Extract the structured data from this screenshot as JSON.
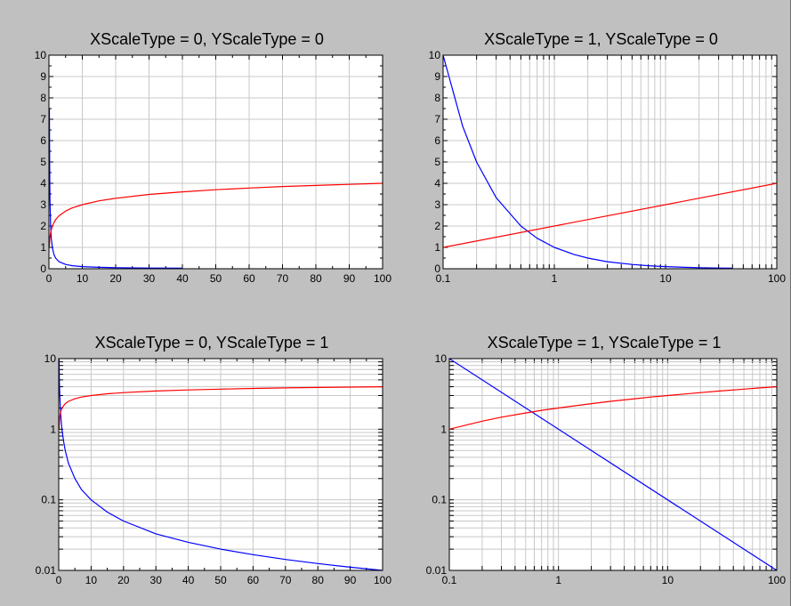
{
  "chart_data": [
    {
      "type": "line",
      "title": "XScaleType = 0, YScaleType = 0",
      "xscale": "linear",
      "yscale": "linear",
      "xlim": [
        0,
        100
      ],
      "ylim": [
        0,
        10
      ],
      "xticks": [
        0,
        10,
        20,
        30,
        40,
        50,
        60,
        70,
        80,
        90,
        100
      ],
      "xticklabels": [
        "0",
        "10",
        "20",
        "30",
        "40",
        "50",
        "60",
        "70",
        "80",
        "90",
        "100"
      ],
      "yticks": [
        0,
        1,
        2,
        3,
        4,
        5,
        6,
        7,
        8,
        9,
        10
      ],
      "yticklabels": [
        "0",
        "1",
        "2",
        "3",
        "4",
        "5",
        "6",
        "7",
        "8",
        "9",
        "10"
      ],
      "grid": true,
      "series": [
        {
          "color": "#0000ff",
          "x": [
            0.13,
            0.15,
            0.2,
            0.3,
            0.5,
            0.7,
            1,
            1.5,
            2,
            3,
            5,
            7,
            10,
            15,
            20,
            30,
            40
          ],
          "y": [
            7.5,
            6.7,
            5,
            3.33,
            2,
            1.43,
            1,
            0.67,
            0.5,
            0.33,
            0.2,
            0.14,
            0.1,
            0.067,
            0.05,
            0.033,
            0.025
          ]
        },
        {
          "color": "#ff0000",
          "x": [
            0.1,
            0.3,
            0.5,
            1,
            2,
            3,
            5,
            7,
            10,
            15,
            20,
            30,
            40,
            50,
            60,
            70,
            80,
            90,
            100
          ],
          "y": [
            1,
            1.48,
            1.7,
            2,
            2.3,
            2.48,
            2.7,
            2.85,
            3,
            3.18,
            3.3,
            3.48,
            3.6,
            3.7,
            3.78,
            3.85,
            3.9,
            3.95,
            4
          ]
        }
      ]
    },
    {
      "type": "line",
      "title": "XScaleType = 1, YScaleType = 0",
      "xscale": "log",
      "yscale": "linear",
      "xlim": [
        0.1,
        100
      ],
      "ylim": [
        0,
        10
      ],
      "xticks": [
        0.1,
        1,
        10,
        100
      ],
      "xticklabels": [
        "0.1",
        "1",
        "10",
        "100"
      ],
      "yticks": [
        0,
        1,
        2,
        3,
        4,
        5,
        6,
        7,
        8,
        9,
        10
      ],
      "yticklabels": [
        "0",
        "1",
        "2",
        "3",
        "4",
        "5",
        "6",
        "7",
        "8",
        "9",
        "10"
      ],
      "grid": true,
      "series": [
        {
          "color": "#0000ff",
          "x": [
            0.1,
            0.15,
            0.2,
            0.3,
            0.5,
            0.7,
            1,
            1.5,
            2,
            3,
            5,
            7,
            10,
            15,
            20,
            30,
            40
          ],
          "y": [
            10,
            6.67,
            5,
            3.33,
            2,
            1.43,
            1,
            0.67,
            0.5,
            0.33,
            0.2,
            0.14,
            0.1,
            0.067,
            0.05,
            0.033,
            0.025
          ]
        },
        {
          "color": "#ff0000",
          "x": [
            0.1,
            100
          ],
          "y": [
            1,
            4
          ]
        }
      ]
    },
    {
      "type": "line",
      "title": "XScaleType = 0, YScaleType = 1",
      "xscale": "linear",
      "yscale": "log",
      "xlim": [
        0,
        100
      ],
      "ylim": [
        0.01,
        10
      ],
      "xticks": [
        0,
        10,
        20,
        30,
        40,
        50,
        60,
        70,
        80,
        90,
        100
      ],
      "xticklabels": [
        "0",
        "10",
        "20",
        "30",
        "40",
        "50",
        "60",
        "70",
        "80",
        "90",
        "100"
      ],
      "yticks": [
        0.01,
        0.1,
        1,
        10
      ],
      "yticklabels": [
        "0.01",
        "0.1",
        "1",
        "10"
      ],
      "grid": true,
      "series": [
        {
          "color": "#0000ff",
          "x": [
            0.1,
            0.2,
            0.3,
            0.5,
            0.7,
            1,
            1.5,
            2,
            3,
            5,
            7,
            10,
            15,
            20,
            30,
            40,
            50,
            60,
            70,
            80,
            90,
            100
          ],
          "y": [
            10,
            5,
            3.33,
            2,
            1.43,
            1,
            0.67,
            0.5,
            0.33,
            0.2,
            0.14,
            0.1,
            0.067,
            0.05,
            0.033,
            0.025,
            0.02,
            0.0167,
            0.0143,
            0.0125,
            0.0111,
            0.01
          ]
        },
        {
          "color": "#ff0000",
          "x": [
            0.1,
            0.3,
            0.5,
            1,
            2,
            3,
            5,
            7,
            10,
            15,
            20,
            30,
            40,
            50,
            60,
            70,
            80,
            90,
            100
          ],
          "y": [
            1,
            1.48,
            1.7,
            2,
            2.3,
            2.48,
            2.7,
            2.85,
            3,
            3.18,
            3.3,
            3.48,
            3.6,
            3.7,
            3.78,
            3.85,
            3.9,
            3.95,
            4
          ]
        }
      ]
    },
    {
      "type": "line",
      "title": "XScaleType = 1, YScaleType = 1",
      "xscale": "log",
      "yscale": "log",
      "xlim": [
        0.1,
        100
      ],
      "ylim": [
        0.01,
        10
      ],
      "xticks": [
        0.1,
        1,
        10,
        100
      ],
      "xticklabels": [
        "0.1",
        "1",
        "10",
        "100"
      ],
      "yticks": [
        0.01,
        0.1,
        1,
        10
      ],
      "yticklabels": [
        "0.01",
        "0.1",
        "1",
        "10"
      ],
      "grid": true,
      "series": [
        {
          "color": "#0000ff",
          "x": [
            0.1,
            100
          ],
          "y": [
            10,
            0.01
          ]
        },
        {
          "color": "#ff0000",
          "x": [
            0.1,
            0.2,
            0.3,
            0.5,
            0.7,
            1,
            2,
            3,
            5,
            7,
            10,
            20,
            30,
            50,
            70,
            100
          ],
          "y": [
            1,
            1.3,
            1.48,
            1.7,
            1.85,
            2,
            2.3,
            2.48,
            2.7,
            2.85,
            3,
            3.3,
            3.48,
            3.7,
            3.85,
            4
          ]
        }
      ]
    }
  ]
}
